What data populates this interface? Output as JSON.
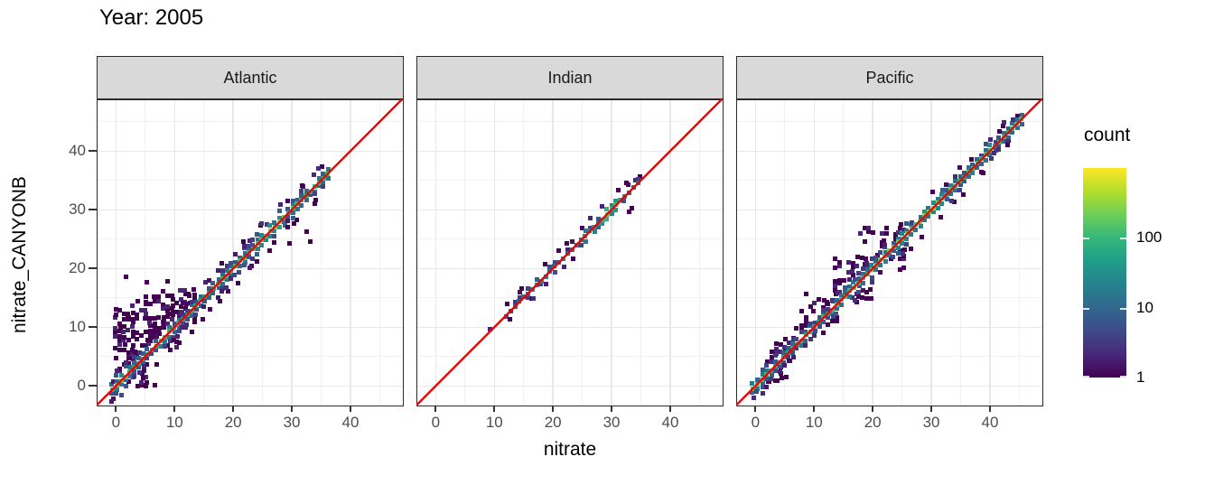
{
  "title": "Year: 2005",
  "x_axis": {
    "title": "nitrate",
    "ticks": [
      0,
      10,
      20,
      30,
      40
    ],
    "minor_ticks": [
      5,
      15,
      25,
      35,
      45
    ],
    "range": [
      -3.3,
      49.1
    ]
  },
  "y_axis": {
    "title": "nitrate_CANYONB",
    "ticks": [
      0,
      10,
      20,
      30,
      40
    ],
    "minor_ticks": [
      5,
      15,
      25,
      35,
      45
    ],
    "range": [
      -3.5,
      48.8
    ]
  },
  "legend": {
    "title": "count",
    "scale": "log10",
    "range": [
      1,
      1000
    ],
    "tick_labels": [
      "1",
      "10",
      "100"
    ],
    "tick_values": [
      1,
      10,
      100
    ]
  },
  "colors": {
    "viridis": [
      "#440154",
      "#482878",
      "#3E4A89",
      "#31688E",
      "#26828E",
      "#1F9E89",
      "#35B779",
      "#6DCE59",
      "#B4DE2C",
      "#FDE725"
    ],
    "identity_line": "#F40000",
    "strip_bg": "#D9D9D9",
    "panel_border": "#2B2B2B",
    "grid_major": "#E8E8E8",
    "grid_minor": "#F2F2F2",
    "tick_label": "#4D4D4D"
  },
  "chart_data": {
    "type": "heatmap",
    "subtype": "bin2d_faceted_scatter_density",
    "binwidth": 0.75,
    "reference_line": {
      "slope": 1,
      "intercept": 0
    },
    "facets": [
      {
        "label": "Atlantic",
        "diag": {
          "from": -0.6,
          "to": 36.3,
          "step": 0.75,
          "count_profile": [
            [
              -0.6,
              150
            ],
            [
              0.5,
              220
            ],
            [
              2,
              90
            ],
            [
              4,
              60
            ],
            [
              6,
              80
            ],
            [
              8,
              150
            ],
            [
              10,
              70
            ],
            [
              12,
              60
            ],
            [
              14,
              60
            ],
            [
              16,
              80
            ],
            [
              18,
              110
            ],
            [
              20,
              160
            ],
            [
              22,
              110
            ],
            [
              24,
              130
            ],
            [
              26,
              320
            ],
            [
              27.5,
              420
            ],
            [
              29,
              160
            ],
            [
              31,
              90
            ],
            [
              33,
              70
            ],
            [
              35,
              150
            ],
            [
              36.3,
              100
            ]
          ],
          "flank": [
            {
              "off": 0.75,
              "p": 0.9,
              "f": 0.1
            },
            {
              "off": 1.5,
              "p": 0.55,
              "f": 0.035
            },
            {
              "off": 2.25,
              "p": 0.28,
              "f": 0.015
            }
          ],
          "taper": {
            "t": 30,
            "min_off": 1.5,
            "mult": 0.35
          }
        },
        "cloud": [
          {
            "x": [
              0,
              3.2
            ],
            "y": [
              2.5,
              13
            ],
            "density": 0.5
          },
          {
            "x": [
              2.2,
              6.8
            ],
            "y": [
              5.5,
              15.2
            ],
            "density": 0.42
          },
          {
            "x": [
              5.2,
              9.8
            ],
            "y": [
              8.5,
              16.2
            ],
            "density": 0.45
          },
          {
            "x": [
              8.2,
              13.6
            ],
            "y": [
              11,
              16.5
            ],
            "density": 0.5
          },
          {
            "x": [
              0.8,
              6.8
            ],
            "y": [
              0,
              4.2
            ],
            "density": 0.28
          },
          {
            "x": [
              6,
              12
            ],
            "y": [
              6.8,
              11
            ],
            "density": 0.25
          }
        ],
        "scatter": [
          [
            1.7,
            18.5,
            1
          ],
          [
            5.2,
            17.7,
            1
          ],
          [
            8.8,
            17.8,
            1
          ],
          [
            33.1,
            24.6,
            1
          ],
          [
            32.6,
            26.3,
            1
          ],
          [
            29.6,
            24.3,
            1
          ],
          [
            26.2,
            23.0,
            1
          ],
          [
            23.2,
            20.4,
            1
          ],
          [
            19.2,
            16.1,
            1
          ],
          [
            16.1,
            13.0,
            1
          ],
          [
            13.0,
            9.2,
            1
          ],
          [
            9.2,
            6.1,
            1
          ],
          [
            7.0,
            3.6,
            1
          ],
          [
            4.7,
            1.4,
            1
          ],
          [
            35.2,
            37.3,
            1
          ],
          [
            31.9,
            34.0,
            2
          ],
          [
            34.0,
            31.6,
            1
          ],
          [
            30.4,
            27.7,
            1
          ],
          [
            28.0,
            30.9,
            2
          ],
          [
            24.7,
            27.4,
            1
          ],
          [
            21.7,
            24.5,
            1
          ],
          [
            18.0,
            20.9,
            1
          ],
          [
            15.2,
            17.7,
            2
          ],
          [
            12.4,
            15.6,
            1
          ],
          [
            10.8,
            7.4,
            1
          ],
          [
            14.8,
            11.4,
            1
          ],
          [
            17.8,
            14.4,
            1
          ],
          [
            20.8,
            17.5,
            1
          ],
          [
            24.0,
            21.2,
            1
          ],
          [
            27.0,
            24.4,
            1
          ],
          [
            30.8,
            28.2,
            1
          ],
          [
            33.9,
            31.0,
            1
          ]
        ]
      },
      {
        "label": "Indian",
        "diag": {
          "from": 12.0,
          "to": 35.1,
          "step": 0.75,
          "count_profile": [
            [
              12,
              4
            ],
            [
              14,
              8
            ],
            [
              16,
              12
            ],
            [
              18,
              18
            ],
            [
              20,
              10
            ],
            [
              22,
              14
            ],
            [
              24,
              20
            ],
            [
              26,
              30
            ],
            [
              28,
              60
            ],
            [
              29,
              150
            ],
            [
              30,
              180
            ],
            [
              30.8,
              120
            ],
            [
              32,
              25
            ],
            [
              33.5,
              15
            ],
            [
              35.1,
              18
            ]
          ],
          "flank": [
            {
              "off": 0.75,
              "p": 0.5,
              "f": 0.3
            },
            {
              "off": 1.5,
              "p": 0.15,
              "f": 0.12
            }
          ],
          "taper": null
        },
        "cloud": [],
        "scatter": [
          [
            9.2,
            9.6,
            2
          ],
          [
            23.4,
            21.7,
            1
          ],
          [
            26.4,
            28.5,
            2
          ],
          [
            25.0,
            26.9,
            1
          ],
          [
            28.3,
            30.5,
            2
          ],
          [
            31.2,
            33.3,
            1
          ],
          [
            33.0,
            29.7,
            1
          ],
          [
            33.4,
            30.2,
            1
          ],
          [
            32.5,
            34.5,
            1
          ],
          [
            34.0,
            35.0,
            2
          ],
          [
            34.8,
            35.7,
            1
          ],
          [
            21.0,
            23.1,
            1
          ],
          [
            18.7,
            20.8,
            1
          ],
          [
            14.7,
            16.6,
            1
          ],
          [
            12.2,
            13.9,
            1
          ],
          [
            16.4,
            14.9,
            1
          ]
        ]
      },
      {
        "label": "Pacific",
        "diag": {
          "from": -0.4,
          "to": 45.6,
          "step": 0.75,
          "count_profile": [
            [
              -0.4,
              250
            ],
            [
              1,
              120
            ],
            [
              3,
              60
            ],
            [
              5,
              50
            ],
            [
              7,
              70
            ],
            [
              9,
              80
            ],
            [
              11,
              90
            ],
            [
              13,
              110
            ],
            [
              15,
              130
            ],
            [
              17,
              120
            ],
            [
              19,
              160
            ],
            [
              21,
              220
            ],
            [
              23,
              150
            ],
            [
              25,
              170
            ],
            [
              27,
              200
            ],
            [
              29,
              280
            ],
            [
              30.5,
              300
            ],
            [
              32,
              140
            ],
            [
              34,
              130
            ],
            [
              36,
              150
            ],
            [
              38,
              120
            ],
            [
              40,
              110
            ],
            [
              42,
              100
            ],
            [
              44,
              140
            ],
            [
              45.6,
              90
            ]
          ],
          "flank": [
            {
              "off": 0.75,
              "p": 0.9,
              "f": 0.09
            },
            {
              "off": 1.5,
              "p": 0.5,
              "f": 0.03
            },
            {
              "off": 2.25,
              "p": 0.22,
              "f": 0.012
            }
          ],
          "taper": {
            "t": 27,
            "min_off": 1.5,
            "mult": 0.4
          }
        },
        "cloud": [
          {
            "x": [
              2.2,
              7.2
            ],
            "y": [
              4.2,
              8.2
            ],
            "density": 0.4
          },
          {
            "x": [
              0.8,
              5.5
            ],
            "y": [
              0,
              3.6
            ],
            "density": 0.25
          },
          {
            "x": [
              8,
              14
            ],
            "y": [
              9.5,
              15.5
            ],
            "density": 0.3
          },
          {
            "x": [
              13,
              20
            ],
            "y": [
              15,
              22
            ],
            "density": 0.3
          },
          {
            "x": [
              18,
              25.5
            ],
            "y": [
              20,
              27
            ],
            "density": 0.3
          }
        ],
        "scatter": [
          [
            41.6,
            43.4,
            1
          ],
          [
            38.9,
            36.3,
            1
          ],
          [
            36.9,
            38.6,
            1
          ],
          [
            31.6,
            28.7,
            1
          ],
          [
            33.9,
            31.3,
            1
          ],
          [
            28.4,
            25.3,
            1
          ],
          [
            24.9,
            27.5,
            1
          ],
          [
            21.9,
            24.7,
            1
          ],
          [
            13.6,
            16.3,
            1
          ],
          [
            6.9,
            9.8,
            1
          ],
          [
            2.4,
            0.7,
            1
          ],
          [
            44.7,
            45.9,
            1
          ],
          [
            42.3,
            44.2,
            1
          ],
          [
            9.9,
            12.7,
            1
          ],
          [
            17.2,
            14.2,
            1
          ],
          [
            26.5,
            23.4,
            1
          ],
          [
            30.2,
            33.0,
            1
          ],
          [
            35.4,
            32.6,
            1
          ],
          [
            40.1,
            41.9,
            2
          ],
          [
            43.2,
            41.8,
            1
          ]
        ]
      }
    ]
  }
}
